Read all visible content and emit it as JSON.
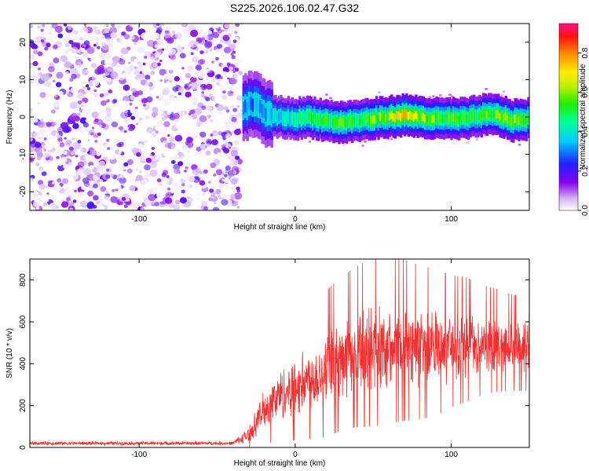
{
  "title": "S225.2026.106.02.47.G32",
  "chart_data": [
    {
      "type": "heatmap",
      "xlabel": "Height of straight line (km)",
      "ylabel": "Frequency (Hz)",
      "xlim": [
        -170,
        150
      ],
      "ylim": [
        -25,
        25
      ],
      "xticks": [
        "-100",
        "0",
        "100"
      ],
      "yticks": [
        "-20",
        "-10",
        "0",
        "10",
        "20"
      ],
      "colorbar": {
        "label": "Normalized spectral amplitude",
        "range": [
          0,
          0.95
        ],
        "ticks": [
          "0.0",
          "0.2",
          "0.4",
          "0.6",
          "0.8"
        ]
      },
      "noise_region_x": [
        -170,
        -35
      ],
      "signal_track": {
        "x": [
          -35,
          -30,
          -25,
          -20,
          -10,
          0,
          10,
          20,
          30,
          40,
          50,
          60,
          70,
          80,
          90,
          100,
          110,
          120,
          130,
          140,
          150
        ],
        "freq": [
          1.5,
          3.0,
          4.0,
          1.0,
          0.0,
          -0.5,
          0.0,
          -1.0,
          -1.5,
          -1.0,
          -0.5,
          0.0,
          0.5,
          0.0,
          -0.5,
          -0.5,
          -0.5,
          0.5,
          0.5,
          -1.0,
          -0.5
        ],
        "amplitude": [
          0.25,
          0.3,
          0.35,
          0.35,
          0.4,
          0.45,
          0.5,
          0.55,
          0.55,
          0.5,
          0.6,
          0.65,
          0.75,
          0.65,
          0.6,
          0.55,
          0.55,
          0.55,
          0.6,
          0.65,
          0.55
        ]
      }
    },
    {
      "type": "line",
      "xlabel": "Height of straight line (km)",
      "ylabel": "SNR (10 * v/v)",
      "xlim": [
        -170,
        150
      ],
      "ylim": [
        0,
        900
      ],
      "xticks": [
        "-100",
        "0",
        "100"
      ],
      "yticks": [
        "0",
        "200",
        "400",
        "600",
        "800"
      ],
      "color": "#f03030",
      "trend": {
        "x": [
          -170,
          -40,
          -30,
          -25,
          -20,
          -10,
          0,
          10,
          20,
          30,
          40,
          50,
          60,
          70,
          80,
          90,
          100,
          110,
          120,
          130,
          140,
          150
        ],
        "mean": [
          20,
          20,
          60,
          120,
          180,
          250,
          290,
          330,
          370,
          420,
          450,
          470,
          480,
          480,
          470,
          470,
          480,
          490,
          490,
          490,
          480,
          480
        ],
        "spread": [
          10,
          10,
          40,
          70,
          100,
          140,
          160,
          180,
          200,
          210,
          220,
          230,
          230,
          220,
          210,
          200,
          180,
          170,
          150,
          140,
          130,
          130
        ]
      }
    }
  ]
}
